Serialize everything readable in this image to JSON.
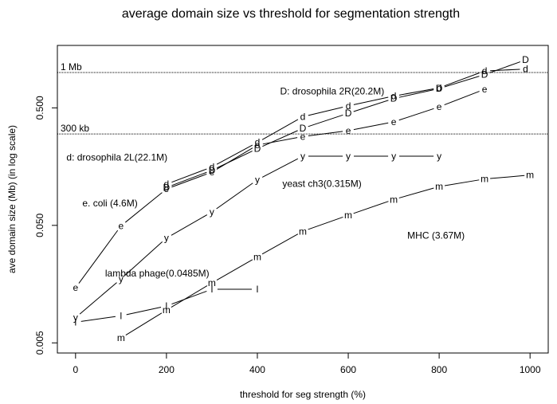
{
  "chart_data": {
    "type": "line",
    "title": "average domain size vs threshold for segmentation strength",
    "xlabel": "threshold for seg strength (%)",
    "ylabel": "ave domain size (Mb) (in log scale)",
    "xlim": [
      -40,
      1040
    ],
    "ylim": [
      0.0041,
      1.7
    ],
    "y_scale": "log",
    "x_ticks": [
      0,
      200,
      400,
      600,
      800,
      1000
    ],
    "y_ticks": [
      0.005,
      0.05,
      0.5
    ],
    "y_tick_labels": [
      "0.005",
      "0.050",
      "0.500"
    ],
    "reference_lines": [
      {
        "label": "1 Mb",
        "y": 1.0
      },
      {
        "label": "300 kb",
        "y": 0.3
      }
    ],
    "series": [
      {
        "marker": "D",
        "x": [
          200,
          300,
          400,
          500,
          600,
          700,
          800,
          900,
          990
        ],
        "y": [
          0.105,
          0.147,
          0.225,
          0.335,
          0.45,
          0.6,
          0.73,
          0.96,
          1.28
        ]
      },
      {
        "marker": "d",
        "x": [
          200,
          300,
          400,
          500,
          600,
          700,
          800,
          900,
          990
        ],
        "y": [
          0.112,
          0.157,
          0.254,
          0.42,
          0.52,
          0.63,
          0.74,
          1.03,
          1.07
        ]
      },
      {
        "marker": "e",
        "x": [
          0,
          100,
          200,
          300,
          400,
          500,
          600,
          700,
          800,
          900
        ],
        "y": [
          0.0147,
          0.0495,
          0.102,
          0.142,
          0.241,
          0.285,
          0.32,
          0.38,
          0.51,
          0.72
        ]
      },
      {
        "marker": "y",
        "x": [
          0,
          100,
          200,
          300,
          400,
          500,
          600,
          700,
          800
        ],
        "y": [
          0.0082,
          0.0175,
          0.039,
          0.065,
          0.122,
          0.194,
          0.194,
          0.194,
          0.194
        ]
      },
      {
        "marker": "l",
        "x": [
          0,
          100,
          200,
          300,
          400
        ],
        "y": [
          0.0075,
          0.0085,
          0.0103,
          0.0143,
          0.0143
        ]
      },
      {
        "marker": "m",
        "x": [
          100,
          200,
          300,
          400,
          500,
          600,
          700,
          800,
          900,
          1000
        ],
        "y": [
          0.0055,
          0.0095,
          0.0162,
          0.027,
          0.0445,
          0.061,
          0.083,
          0.107,
          0.124,
          0.134
        ]
      }
    ],
    "annotations": [
      {
        "text": "D: drosophila 2R(20.2M)",
        "x": 450,
        "y": 0.69
      },
      {
        "text": "d: drosophila 2L(22.1M)",
        "x": -20,
        "y": 0.19
      },
      {
        "text": "e. coli (4.6M)",
        "x": 15,
        "y": 0.077
      },
      {
        "text": "yeast ch3(0.315M)",
        "x": 455,
        "y": 0.113
      },
      {
        "text": "MHC (3.67M)",
        "x": 730,
        "y": 0.041
      },
      {
        "text": "lambda phage(0.0485M)",
        "x": 65,
        "y": 0.0195
      }
    ]
  }
}
